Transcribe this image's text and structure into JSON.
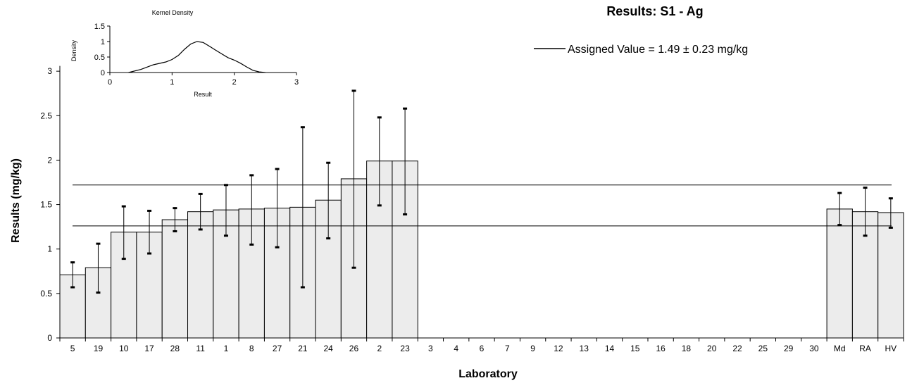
{
  "chart_data": [
    {
      "type": "bar",
      "title": "Results: S1 - Ag",
      "xlabel": "Laboratory",
      "ylabel": "Results (mg/kg)",
      "ylim": [
        0,
        3.5
      ],
      "yticks": [
        "0",
        "0.5",
        "1",
        "1.5",
        "2",
        "2.5",
        "3"
      ],
      "categories": [
        "5",
        "19",
        "10",
        "17",
        "28",
        "11",
        "1",
        "8",
        "27",
        "21",
        "24",
        "26",
        "2",
        "23",
        "3",
        "4",
        "6",
        "7",
        "9",
        "12",
        "13",
        "14",
        "15",
        "16",
        "18",
        "20",
        "22",
        "25",
        "29",
        "30",
        "Md",
        "RA",
        "HV"
      ],
      "values": [
        0.71,
        0.79,
        1.19,
        1.19,
        1.33,
        1.42,
        1.44,
        1.45,
        1.46,
        1.47,
        1.55,
        1.79,
        1.99,
        1.99,
        null,
        null,
        null,
        null,
        null,
        null,
        null,
        null,
        null,
        null,
        null,
        null,
        null,
        null,
        null,
        null,
        1.45,
        1.42,
        1.41
      ],
      "error_bars": [
        {
          "low": 0.57,
          "high": 0.85
        },
        {
          "low": 0.51,
          "high": 1.06
        },
        {
          "low": 0.89,
          "high": 1.48
        },
        {
          "low": 0.95,
          "high": 1.43
        },
        {
          "low": 1.2,
          "high": 1.46
        },
        {
          "low": 1.22,
          "high": 1.62
        },
        {
          "low": 1.15,
          "high": 1.72
        },
        {
          "low": 1.05,
          "high": 1.83
        },
        {
          "low": 1.02,
          "high": 1.9
        },
        {
          "low": 0.57,
          "high": 2.37
        },
        {
          "low": 1.12,
          "high": 1.97
        },
        {
          "low": 0.79,
          "high": 2.78
        },
        {
          "low": 1.49,
          "high": 2.48
        },
        {
          "low": 1.39,
          "high": 2.58
        },
        null,
        null,
        null,
        null,
        null,
        null,
        null,
        null,
        null,
        null,
        null,
        null,
        null,
        null,
        null,
        null,
        {
          "low": 1.27,
          "high": 1.63
        },
        {
          "low": 1.15,
          "high": 1.69
        },
        {
          "low": 1.24,
          "high": 1.57
        }
      ],
      "reference_lines": [
        1.26,
        1.72
      ],
      "legend": {
        "label": "Assigned Value",
        "text": " = 1.49 ± 0.23 mg/kg",
        "position": "top-right"
      },
      "bar_color": "#ececec",
      "line_color": "#000000"
    },
    {
      "type": "line",
      "title": "Kernel Density",
      "xlabel": "Result",
      "ylabel": "Density",
      "xlim": [
        0,
        3
      ],
      "ylim": [
        0,
        1.5
      ],
      "xticks": [
        "0",
        "1",
        "2",
        "3"
      ],
      "yticks": [
        "0",
        "0.5",
        "1",
        "1.5"
      ],
      "x": [
        0.3,
        0.5,
        0.7,
        0.9,
        1.0,
        1.1,
        1.2,
        1.3,
        1.4,
        1.5,
        1.6,
        1.7,
        1.8,
        1.9,
        2.0,
        2.1,
        2.2,
        2.3,
        2.4,
        2.5
      ],
      "y": [
        0.0,
        0.1,
        0.25,
        0.34,
        0.42,
        0.55,
        0.75,
        0.92,
        1.0,
        0.97,
        0.85,
        0.72,
        0.6,
        0.48,
        0.4,
        0.3,
        0.18,
        0.07,
        0.02,
        0.0
      ]
    }
  ]
}
